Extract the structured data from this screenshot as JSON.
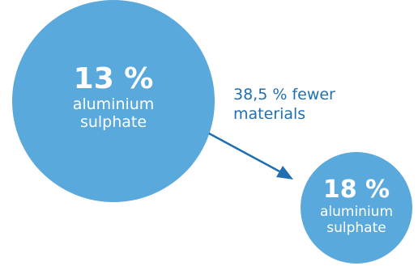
{
  "colors": {
    "circle_fill": "#5aa9dc",
    "arrow": "#1f6fb2",
    "reduction_text": "#1f6fb2"
  },
  "diagram": {
    "left_circle": {
      "percent": "13 %",
      "label": "aluminium sulphate"
    },
    "right_circle": {
      "percent": "18 %",
      "label": "aluminium sulphate"
    },
    "reduction_note": "38,5 % fewer materials"
  }
}
